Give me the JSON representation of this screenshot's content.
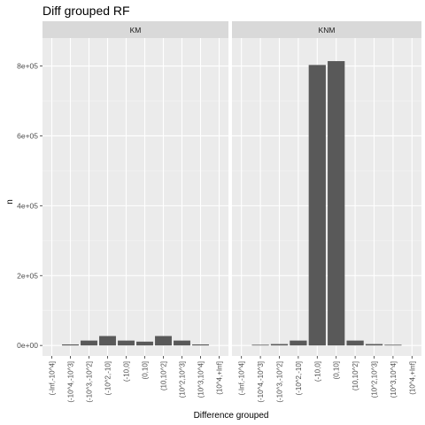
{
  "chart_data": {
    "type": "bar",
    "title": "Diff grouped RF",
    "xlabel": "Difference grouped",
    "ylabel": "n",
    "ylim": [
      -30000,
      880000
    ],
    "yticks": [
      0,
      200000,
      400000,
      600000,
      800000
    ],
    "ytick_labels": [
      "0e+00",
      "2e+05",
      "4e+05",
      "6e+05",
      "8e+05"
    ],
    "categories": [
      "(-Inf,-10^4]",
      "(-10^4,-10^3]",
      "(-10^3,-10^2]",
      "(-10^2,-10]",
      "(-10,0]",
      "(0,10]",
      "(10,10^2]",
      "(10^2,10^3]",
      "(10^3,10^4]",
      "(10^4,+Inf]"
    ],
    "grid": true,
    "facets": [
      {
        "name": "KM",
        "values": [
          0,
          3000,
          14000,
          27000,
          14000,
          11000,
          27000,
          14000,
          3000,
          0
        ]
      },
      {
        "name": "KNM",
        "values": [
          0,
          2000,
          4000,
          14000,
          803000,
          814000,
          14000,
          4000,
          2000,
          0
        ]
      }
    ]
  }
}
